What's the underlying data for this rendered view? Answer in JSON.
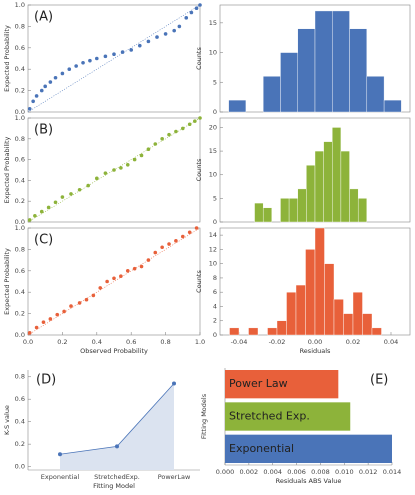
{
  "chart_data": [
    {
      "type": "scatter",
      "annotation": "(A)",
      "ylabel": "Expected Probability",
      "color": "#4a74b8",
      "xlim": [
        0,
        1
      ],
      "ylim": [
        0,
        1
      ],
      "yticks": [
        {
          "value": 0,
          "label": "0.0"
        },
        0.2,
        0.4,
        0.6,
        0.8,
        {
          "value": 1,
          "label": "1.0"
        }
      ],
      "x": [
        0.01,
        0.03,
        0.05,
        0.08,
        0.1,
        0.13,
        0.16,
        0.2,
        0.24,
        0.28,
        0.32,
        0.36,
        0.4,
        0.45,
        0.5,
        0.55,
        0.6,
        0.65,
        0.7,
        0.75,
        0.8,
        0.85,
        0.88,
        0.92,
        0.95,
        0.98,
        1.0
      ],
      "values": [
        0.03,
        0.1,
        0.15,
        0.2,
        0.24,
        0.28,
        0.32,
        0.36,
        0.4,
        0.43,
        0.46,
        0.48,
        0.5,
        0.52,
        0.54,
        0.56,
        0.58,
        0.62,
        0.66,
        0.7,
        0.73,
        0.76,
        0.8,
        0.88,
        0.93,
        0.97,
        1.0
      ]
    },
    {
      "type": "histogram",
      "ylabel": "Counts",
      "color": "#4a74b8",
      "xlim": [
        -0.055,
        0.055
      ],
      "ylim": [
        0,
        18
      ],
      "yticks": [
        0,
        5,
        10,
        15
      ],
      "bins": [
        -0.05,
        -0.04,
        -0.03,
        -0.02,
        -0.01,
        0,
        0.01,
        0.02,
        0.03,
        0.04,
        0.05
      ],
      "values": [
        2,
        0,
        6,
        10,
        14,
        17,
        17,
        14,
        6,
        2
      ]
    },
    {
      "type": "scatter",
      "annotation": "(B)",
      "ylabel": "Expected Probability",
      "color": "#8db33a",
      "xlim": [
        0,
        1
      ],
      "ylim": [
        0,
        1
      ],
      "yticks": [
        {
          "value": 0,
          "label": "0.0"
        },
        0.2,
        0.4,
        0.6,
        0.8,
        {
          "value": 1,
          "label": "1.0"
        }
      ],
      "x": [
        0.01,
        0.04,
        0.08,
        0.12,
        0.16,
        0.2,
        0.25,
        0.3,
        0.35,
        0.4,
        0.45,
        0.5,
        0.54,
        0.58,
        0.62,
        0.66,
        0.7,
        0.74,
        0.78,
        0.82,
        0.86,
        0.9,
        0.94,
        0.97,
        1.0
      ],
      "values": [
        0.02,
        0.06,
        0.1,
        0.14,
        0.19,
        0.24,
        0.27,
        0.31,
        0.35,
        0.42,
        0.47,
        0.5,
        0.52,
        0.55,
        0.6,
        0.64,
        0.7,
        0.75,
        0.8,
        0.84,
        0.87,
        0.9,
        0.94,
        0.97,
        1.0
      ]
    },
    {
      "type": "histogram",
      "ylabel": "Counts",
      "color": "#8db33a",
      "xlim": [
        -0.055,
        0.055
      ],
      "ylim": [
        0,
        22
      ],
      "yticks": [
        0,
        5,
        10,
        15,
        20
      ],
      "bins": [
        -0.035,
        -0.03,
        -0.025,
        -0.02,
        -0.015,
        -0.01,
        -0.005,
        0,
        0.005,
        0.01,
        0.015,
        0.02,
        0.025,
        0.03
      ],
      "values": [
        4,
        3,
        0,
        5,
        5,
        7,
        12,
        15,
        17,
        20,
        15,
        7,
        5
      ]
    },
    {
      "type": "scatter",
      "annotation": "(C)",
      "ylabel": "Expected Probability",
      "xlabel": "Observed Probability",
      "color": "#e8603a",
      "xlim": [
        0,
        1
      ],
      "ylim": [
        0,
        1
      ],
      "yticks": [
        {
          "value": 0,
          "label": "0.0"
        },
        0.2,
        0.4,
        0.6,
        0.8,
        {
          "value": 1,
          "label": "1.0"
        }
      ],
      "xticks": [
        {
          "value": 0,
          "label": "0.0"
        },
        0.2,
        0.4,
        0.6,
        0.8,
        {
          "value": 1,
          "label": "1.0"
        }
      ],
      "x": [
        0.01,
        0.05,
        0.09,
        0.13,
        0.17,
        0.21,
        0.25,
        0.3,
        0.34,
        0.38,
        0.42,
        0.46,
        0.5,
        0.54,
        0.58,
        0.62,
        0.66,
        0.7,
        0.74,
        0.78,
        0.82,
        0.86,
        0.9,
        0.94,
        0.98
      ],
      "values": [
        0.02,
        0.07,
        0.12,
        0.15,
        0.19,
        0.22,
        0.27,
        0.3,
        0.33,
        0.37,
        0.44,
        0.5,
        0.53,
        0.55,
        0.6,
        0.62,
        0.64,
        0.7,
        0.77,
        0.82,
        0.85,
        0.88,
        0.92,
        0.96,
        1.0
      ]
    },
    {
      "type": "histogram",
      "ylabel": "Counts",
      "xlabel": "Residuals",
      "color": "#e8603a",
      "xlim": [
        -0.05,
        0.05
      ],
      "ylim": [
        0,
        15
      ],
      "yticks": [
        0,
        2,
        4,
        6,
        8,
        10,
        12,
        14
      ],
      "xticks": [
        -0.04,
        -0.02,
        {
          "value": 0,
          "label": "0.00"
        },
        0.02,
        0.04
      ],
      "bins": [
        -0.045,
        -0.04,
        -0.035,
        -0.03,
        -0.025,
        -0.02,
        -0.015,
        -0.01,
        -0.005,
        0,
        0.005,
        0.01,
        0.015,
        0.02,
        0.025,
        0.03,
        0.035
      ],
      "values": [
        1,
        0,
        1,
        0,
        1,
        2,
        6,
        7,
        12,
        15,
        10,
        5,
        3,
        6,
        3,
        1
      ]
    },
    {
      "type": "line",
      "annotation": "(D)",
      "ylabel": "K-S value",
      "xlabel": "Fitting Model",
      "color": "#4a74b8",
      "area": true,
      "categories": [
        "Exponential",
        "StretchedExp.",
        "PowerLaw"
      ],
      "values": [
        0.11,
        0.18,
        0.74
      ],
      "ylim": [
        -0.03,
        0.86
      ],
      "yticks": [
        {
          "value": 0,
          "label": "0.0"
        },
        0.2,
        0.4,
        0.6,
        0.8
      ]
    },
    {
      "type": "barh",
      "annotation": "(E)",
      "ylabel": "Fitting Models",
      "xlabel": "Residuals ABS Value",
      "categories": [
        "Exponential",
        "Stretched Exp.",
        "Power Law"
      ],
      "values": [
        0.014,
        0.0105,
        0.0095
      ],
      "colors": [
        "#4a74b8",
        "#8db33a",
        "#e8603a"
      ],
      "xlim": [
        0,
        0.014
      ],
      "xticks": [
        {
          "value": 0,
          "label": "0.000"
        },
        {
          "value": 0.002,
          "label": "0.002"
        },
        {
          "value": 0.004,
          "label": "0.004"
        },
        {
          "value": 0.006,
          "label": "0.006"
        },
        {
          "value": 0.008,
          "label": "0.008"
        },
        {
          "value": 0.01,
          "label": "0.010"
        },
        {
          "value": 0.012,
          "label": "0.012"
        },
        {
          "value": 0.014,
          "label": "0.014"
        }
      ]
    }
  ]
}
